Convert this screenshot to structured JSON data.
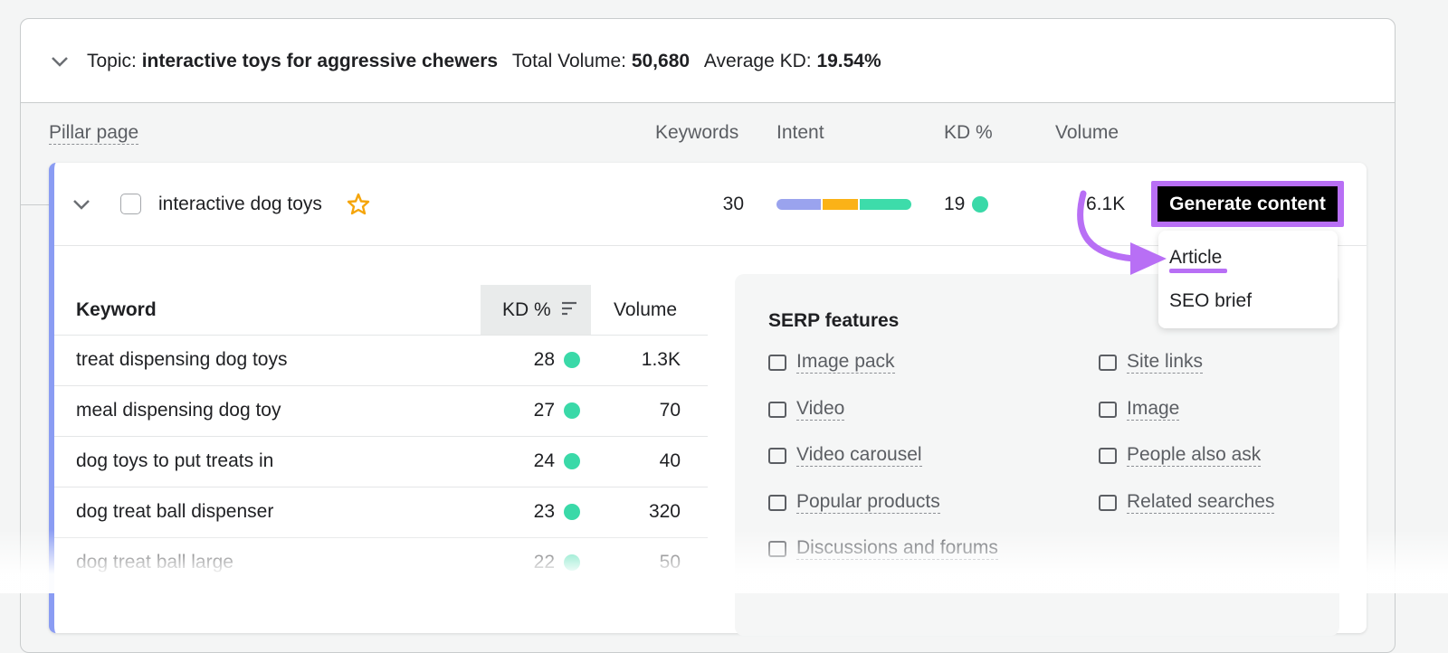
{
  "topic": {
    "label": "Topic:",
    "name": "interactive toys for aggressive chewers",
    "total_volume_label": "Total Volume:",
    "total_volume": "50,680",
    "average_kd_label": "Average KD:",
    "average_kd": "19.54%"
  },
  "columns": {
    "pillar_page": "Pillar page",
    "keywords": "Keywords",
    "intent": "Intent",
    "kd": "KD %",
    "volume": "Volume"
  },
  "pillar": {
    "name": "interactive dog toys",
    "keywords": 30,
    "kd": 19,
    "volume": "6.1K",
    "button": "Generate content"
  },
  "menu": [
    "Article",
    "SEO brief"
  ],
  "keyword_table": {
    "headers": [
      "Keyword",
      "KD %",
      "Volume"
    ],
    "rows": [
      [
        "treat dispensing dog toys",
        28,
        "1.3K"
      ],
      [
        "meal dispensing dog toy",
        27,
        70
      ],
      [
        "dog toys to put treats in",
        24,
        40
      ],
      [
        "dog treat ball dispenser",
        23,
        320
      ],
      [
        "dog treat ball large",
        22,
        50
      ]
    ]
  },
  "serp": {
    "title": "SERP features",
    "left": [
      "Image pack",
      "Video",
      "Video carousel",
      "Popular products",
      "Discussions and forums"
    ],
    "right": [
      "Site links",
      "Image",
      "People also ask",
      "Related searches"
    ]
  }
}
